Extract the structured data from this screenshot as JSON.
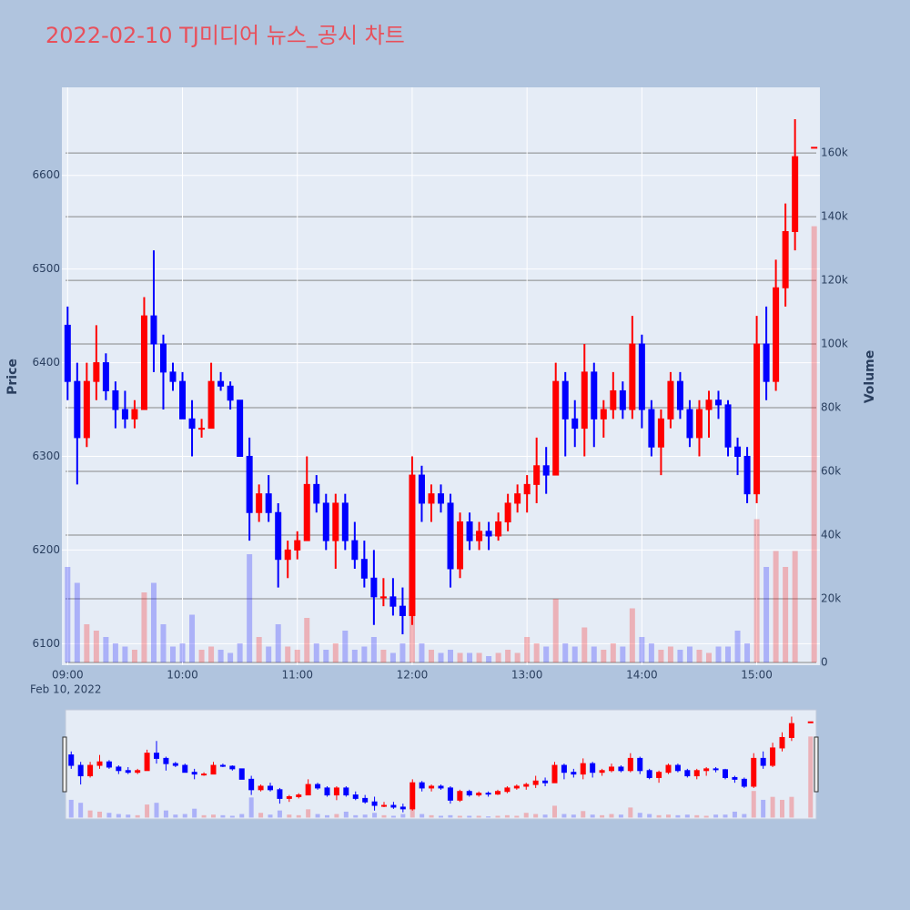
{
  "chart_data": {
    "type": "candlestick",
    "title": "2022-02-10 TJ미디어 뉴스_공시 차트",
    "yaxis_title": "Price",
    "y2axis_title": "Volume",
    "date_label": "Feb 10, 2022",
    "increasing_color": "#ff0000",
    "decreasing_color": "#0000ff",
    "x": [
      "2022-02-10 09:00",
      "2022-02-10 09:05",
      "2022-02-10 09:10",
      "2022-02-10 09:15",
      "2022-02-10 09:20",
      "2022-02-10 09:25",
      "2022-02-10 09:30",
      "2022-02-10 09:35",
      "2022-02-10 09:40",
      "2022-02-10 09:45",
      "2022-02-10 09:50",
      "2022-02-10 09:55",
      "2022-02-10 10:00",
      "2022-02-10 10:05",
      "2022-02-10 10:10",
      "2022-02-10 10:15",
      "2022-02-10 10:20",
      "2022-02-10 10:25",
      "2022-02-10 10:30",
      "2022-02-10 10:35",
      "2022-02-10 10:40",
      "2022-02-10 10:45",
      "2022-02-10 10:50",
      "2022-02-10 10:55",
      "2022-02-10 11:00",
      "2022-02-10 11:05",
      "2022-02-10 11:10",
      "2022-02-10 11:15",
      "2022-02-10 11:20",
      "2022-02-10 11:25",
      "2022-02-10 11:30",
      "2022-02-10 11:35",
      "2022-02-10 11:40",
      "2022-02-10 11:45",
      "2022-02-10 11:50",
      "2022-02-10 11:55",
      "2022-02-10 12:00",
      "2022-02-10 12:05",
      "2022-02-10 12:10",
      "2022-02-10 12:15",
      "2022-02-10 12:20",
      "2022-02-10 12:25",
      "2022-02-10 12:30",
      "2022-02-10 12:35",
      "2022-02-10 12:40",
      "2022-02-10 12:45",
      "2022-02-10 12:50",
      "2022-02-10 12:55",
      "2022-02-10 13:00",
      "2022-02-10 13:05",
      "2022-02-10 13:10",
      "2022-02-10 13:15",
      "2022-02-10 13:20",
      "2022-02-10 13:25",
      "2022-02-10 13:30",
      "2022-02-10 13:35",
      "2022-02-10 13:40",
      "2022-02-10 13:45",
      "2022-02-10 13:50",
      "2022-02-10 13:55",
      "2022-02-10 14:00",
      "2022-02-10 14:05",
      "2022-02-10 14:10",
      "2022-02-10 14:15",
      "2022-02-10 14:20",
      "2022-02-10 14:25",
      "2022-02-10 14:30",
      "2022-02-10 14:35",
      "2022-02-10 14:40",
      "2022-02-10 14:45",
      "2022-02-10 14:50",
      "2022-02-10 14:55",
      "2022-02-10 15:00",
      "2022-02-10 15:05",
      "2022-02-10 15:10",
      "2022-02-10 15:15",
      "2022-02-10 15:20",
      "2022-02-10 15:30"
    ],
    "open": [
      6440,
      6380,
      6320,
      6380,
      6400,
      6370,
      6350,
      6340,
      6350,
      6450,
      6420,
      6390,
      6380,
      6340,
      6330,
      6330,
      6380,
      6375,
      6360,
      6300,
      6240,
      6260,
      6240,
      6190,
      6200,
      6210,
      6270,
      6250,
      6210,
      6250,
      6210,
      6190,
      6170,
      6150,
      6150,
      6140,
      6130,
      6280,
      6250,
      6260,
      6250,
      6180,
      6230,
      6210,
      6220,
      6215,
      6230,
      6250,
      6260,
      6270,
      6290,
      6280,
      6380,
      6340,
      6330,
      6390,
      6340,
      6350,
      6370,
      6350,
      6420,
      6350,
      6310,
      6340,
      6380,
      6350,
      6320,
      6350,
      6360,
      6355,
      6310,
      6300,
      6260,
      6420,
      6380,
      6480,
      6540,
      6630
    ],
    "high": [
      6460,
      6400,
      6400,
      6440,
      6410,
      6380,
      6370,
      6360,
      6470,
      6520,
      6430,
      6400,
      6390,
      6360,
      6340,
      6400,
      6390,
      6380,
      6360,
      6320,
      6270,
      6280,
      6250,
      6210,
      6220,
      6300,
      6280,
      6260,
      6260,
      6260,
      6230,
      6210,
      6200,
      6170,
      6170,
      6160,
      6300,
      6290,
      6270,
      6270,
      6260,
      6240,
      6240,
      6230,
      6230,
      6240,
      6260,
      6270,
      6280,
      6320,
      6310,
      6400,
      6390,
      6360,
      6420,
      6400,
      6360,
      6390,
      6380,
      6450,
      6430,
      6360,
      6350,
      6390,
      6390,
      6360,
      6360,
      6370,
      6370,
      6360,
      6320,
      6310,
      6450,
      6460,
      6510,
      6570,
      6660,
      6630
    ],
    "low": [
      6360,
      6270,
      6310,
      6360,
      6360,
      6330,
      6330,
      6330,
      6350,
      6390,
      6350,
      6370,
      6340,
      6300,
      6320,
      6330,
      6370,
      6350,
      6300,
      6210,
      6230,
      6230,
      6160,
      6170,
      6190,
      6210,
      6240,
      6200,
      6180,
      6200,
      6180,
      6160,
      6120,
      6140,
      6130,
      6110,
      6120,
      6230,
      6230,
      6240,
      6160,
      6170,
      6200,
      6200,
      6200,
      6210,
      6220,
      6240,
      6240,
      6250,
      6260,
      6280,
      6300,
      6310,
      6300,
      6310,
      6320,
      6340,
      6340,
      6340,
      6330,
      6300,
      6280,
      6330,
      6340,
      6310,
      6300,
      6320,
      6340,
      6300,
      6280,
      6250,
      6250,
      6360,
      6370,
      6460,
      6520,
      6630
    ],
    "close": [
      6380,
      6320,
      6380,
      6400,
      6370,
      6350,
      6340,
      6350,
      6450,
      6420,
      6390,
      6380,
      6340,
      6330,
      6330,
      6380,
      6375,
      6360,
      6300,
      6240,
      6260,
      6240,
      6190,
      6200,
      6210,
      6270,
      6250,
      6210,
      6250,
      6210,
      6190,
      6170,
      6150,
      6150,
      6140,
      6130,
      6280,
      6250,
      6260,
      6250,
      6180,
      6230,
      6210,
      6220,
      6215,
      6230,
      6250,
      6260,
      6270,
      6290,
      6280,
      6380,
      6340,
      6330,
      6390,
      6340,
      6350,
      6370,
      6350,
      6420,
      6350,
      6310,
      6340,
      6380,
      6350,
      6320,
      6350,
      6360,
      6355,
      6310,
      6300,
      6260,
      6420,
      6380,
      6480,
      6540,
      6620,
      6630
    ],
    "volume": [
      30000,
      25000,
      12000,
      10000,
      8000,
      6000,
      5000,
      4000,
      22000,
      25000,
      12000,
      5000,
      6000,
      15000,
      4000,
      5000,
      4000,
      3000,
      6000,
      34000,
      8000,
      5000,
      12000,
      5000,
      4000,
      14000,
      6000,
      4000,
      6000,
      10000,
      4000,
      5000,
      8000,
      4000,
      3000,
      6000,
      15000,
      6000,
      4000,
      3000,
      4000,
      3000,
      3000,
      3000,
      2000,
      3000,
      4000,
      3000,
      8000,
      6000,
      5000,
      20000,
      6000,
      5000,
      11000,
      5000,
      4000,
      6000,
      5000,
      17000,
      8000,
      6000,
      4000,
      5000,
      4000,
      5000,
      4000,
      3000,
      5000,
      5000,
      10000,
      6000,
      45000,
      30000,
      35000,
      30000,
      35000,
      137000
    ],
    "xlim": [
      "2022-02-10 08:57",
      "2022-02-10 15:33"
    ],
    "xticks": [
      {
        "value": "2022-02-10 09:00",
        "label": "09:00"
      },
      {
        "value": "2022-02-10 10:00",
        "label": "10:00"
      },
      {
        "value": "2022-02-10 11:00",
        "label": "11:00"
      },
      {
        "value": "2022-02-10 12:00",
        "label": "12:00"
      },
      {
        "value": "2022-02-10 13:00",
        "label": "13:00"
      },
      {
        "value": "2022-02-10 14:00",
        "label": "14:00"
      },
      {
        "value": "2022-02-10 15:00",
        "label": "15:00"
      }
    ],
    "ylim": [
      6077,
      6694
    ],
    "yticks": [
      6100,
      6200,
      6300,
      6400,
      6500,
      6600
    ],
    "y2lim": [
      -860,
      180600
    ],
    "y2ticks": [
      0,
      {
        "value": 20000,
        "label": "20k"
      },
      {
        "value": 40000,
        "label": "40k"
      },
      {
        "value": 60000,
        "label": "60k"
      },
      {
        "value": 80000,
        "label": "80k"
      },
      {
        "value": 100000,
        "label": "100k"
      },
      {
        "value": 120000,
        "label": "120k"
      },
      {
        "value": 140000,
        "label": "140k"
      },
      {
        "value": 160000,
        "label": "160k"
      }
    ],
    "grid": true,
    "rangeslider": true
  }
}
